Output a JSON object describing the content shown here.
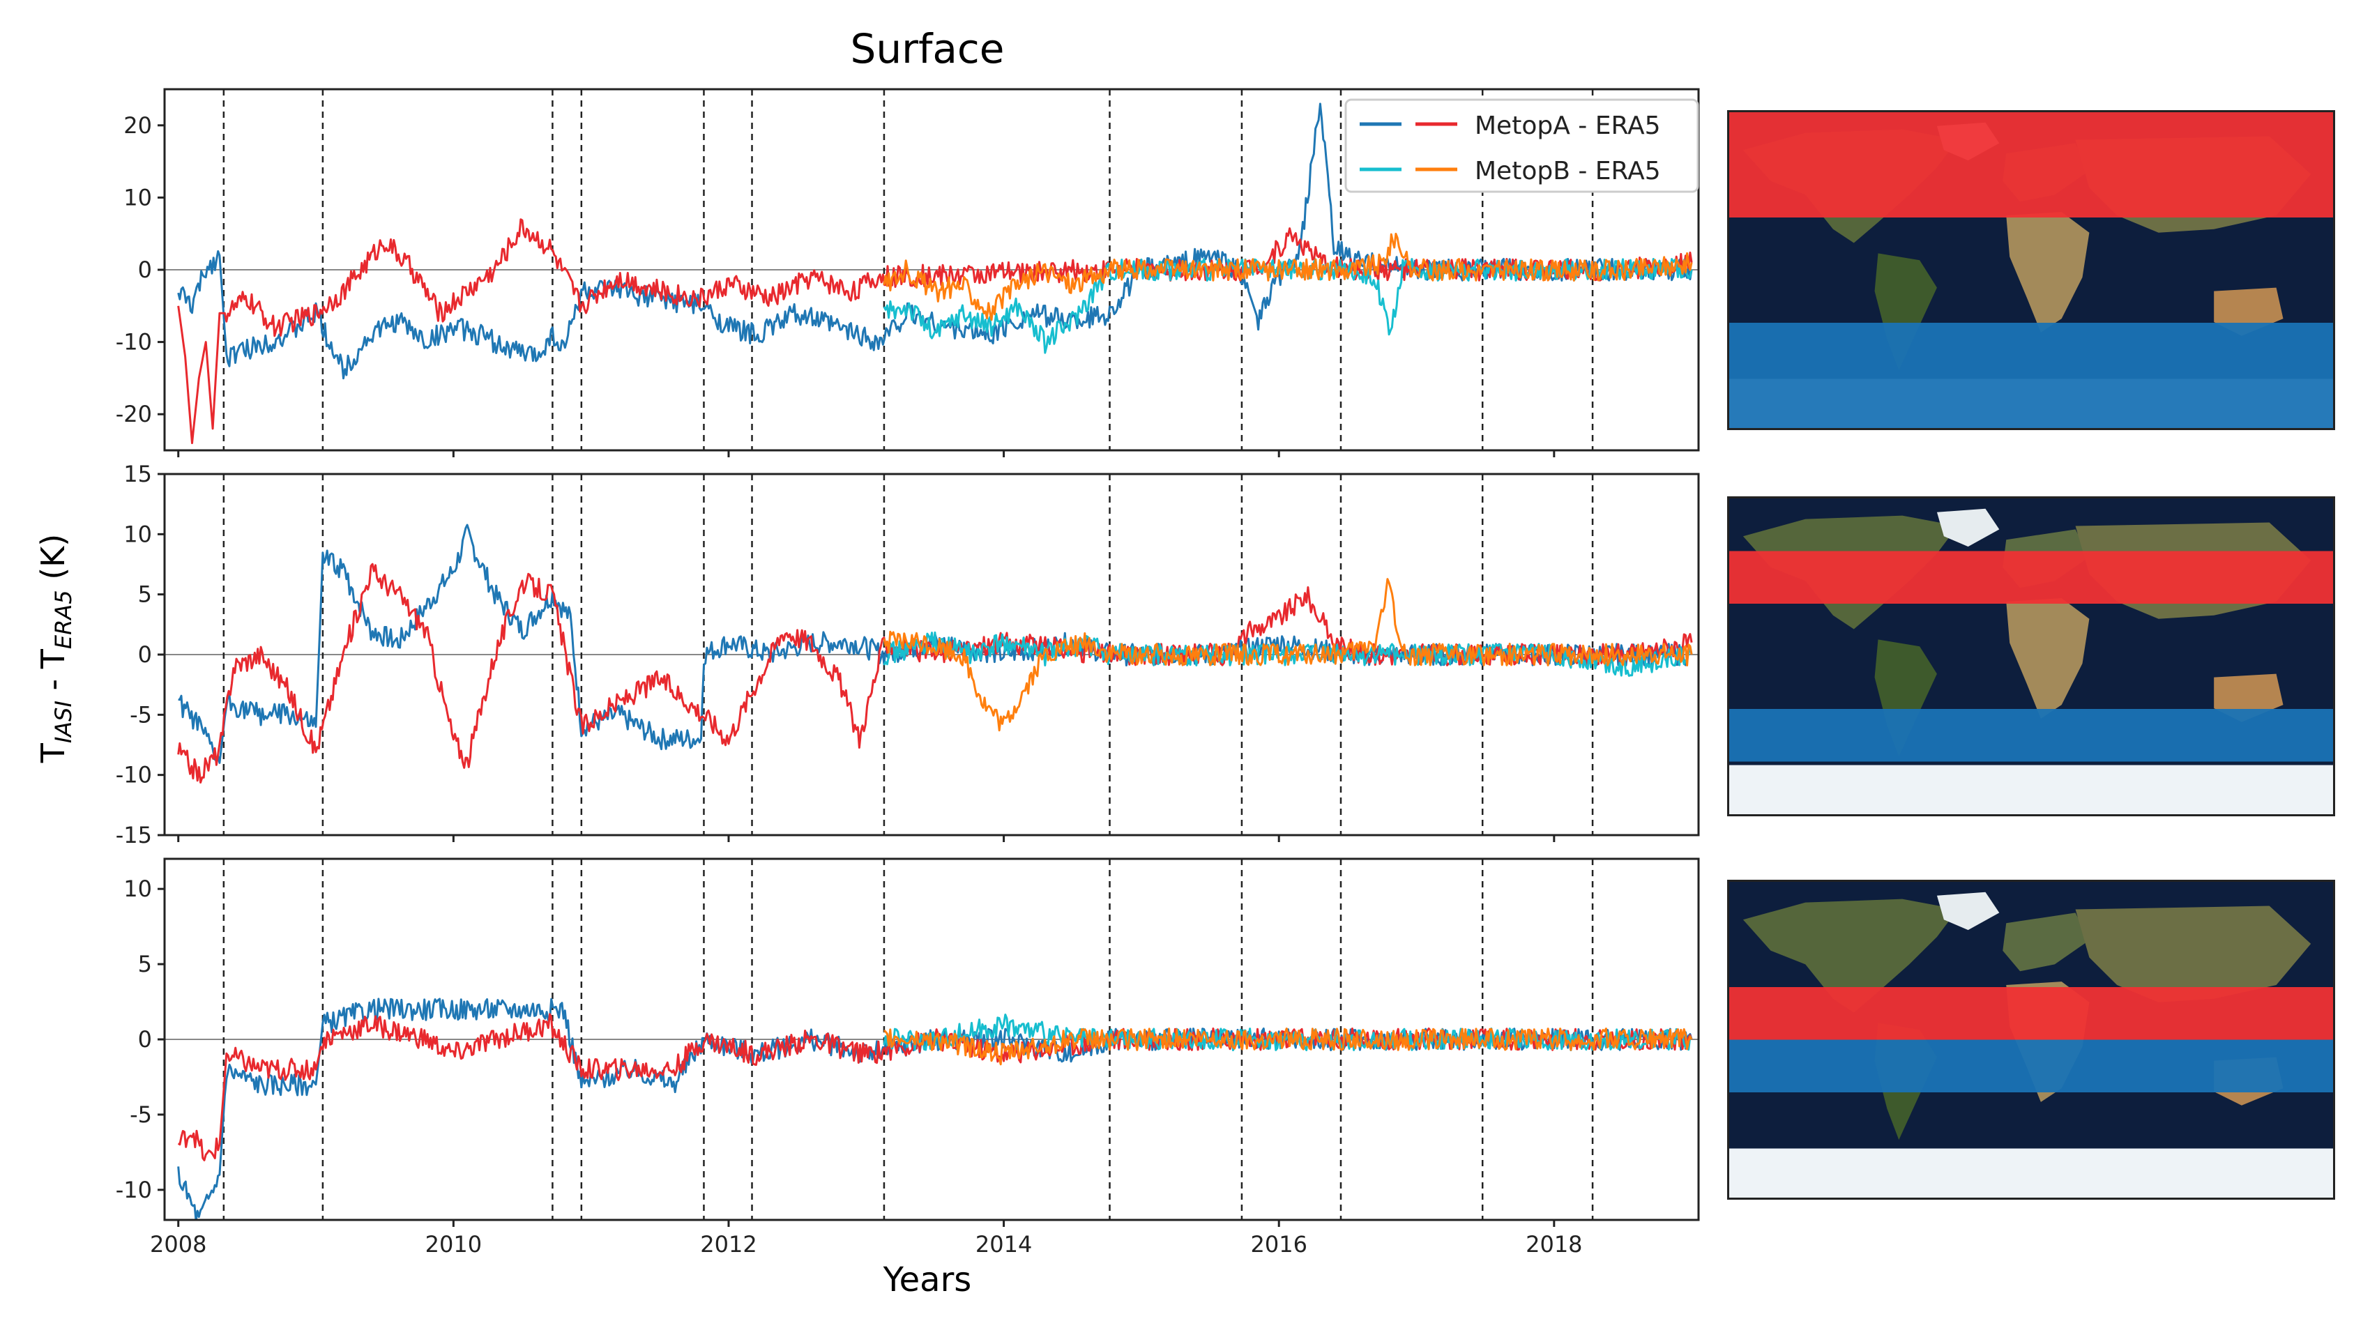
{
  "figure": {
    "title": "Surface",
    "xlabel": "Years",
    "ylabel_main": "T",
    "ylabel_sub1": "IASI",
    "ylabel_mid": " - T",
    "ylabel_sub2": "ERA5",
    "ylabel_unit": " (K)"
  },
  "legend": {
    "entries": [
      {
        "label": "MetopA - ERA5",
        "colors": [
          "#1f77b4",
          "#e8292e"
        ]
      },
      {
        "label": "MetopB - ERA5",
        "colors": [
          "#17becf",
          "#ff7f0e"
        ]
      }
    ]
  },
  "colors": {
    "metopA_south": "#1f77b4",
    "metopA_north": "#e8292e",
    "metopB_south": "#17becf",
    "metopB_north": "#ff7f0e",
    "band_red": "#f03234",
    "band_blue": "#1a73b5"
  },
  "chart_data": [
    {
      "type": "line",
      "panel": "top",
      "xlim": [
        2007.9,
        2019.05
      ],
      "ylim": [
        -25,
        25
      ],
      "xticks": [
        2008,
        2010,
        2012,
        2014,
        2016,
        2018
      ],
      "yticks": [
        -20,
        -10,
        0,
        10,
        20
      ],
      "vlines": [
        2008.33,
        2009.05,
        2010.72,
        2010.93,
        2011.82,
        2012.17,
        2013.13,
        2014.77,
        2015.73,
        2016.45,
        2017.48,
        2018.28
      ],
      "series": [
        {
          "name": "MetopA - ERA5 (blue)",
          "color": "#1f77b4",
          "x": [
            2008.0,
            2008.1,
            2008.2,
            2008.3,
            2008.35,
            2008.5,
            2008.8,
            2009.0,
            2009.1,
            2009.2,
            2009.4,
            2009.6,
            2009.8,
            2010.0,
            2010.2,
            2010.4,
            2010.6,
            2010.72,
            2010.8,
            2010.93,
            2011.2,
            2011.5,
            2011.8,
            2012.0,
            2012.2,
            2012.5,
            2012.8,
            2013.1,
            2013.3,
            2013.6,
            2013.9,
            2014.2,
            2014.5,
            2014.77,
            2015.0,
            2015.3,
            2015.5,
            2015.7,
            2015.78,
            2015.85,
            2016.0,
            2016.15,
            2016.3,
            2016.4,
            2016.6,
            2017.0,
            2017.5,
            2018.0,
            2018.5,
            2019.0
          ],
          "y": [
            -3,
            -5,
            0,
            2,
            -12,
            -11,
            -9,
            -6,
            -10,
            -14,
            -9,
            -7,
            -10,
            -8,
            -9,
            -11,
            -12,
            -9,
            -11,
            -3,
            -3,
            -4,
            -5,
            -8,
            -9,
            -6,
            -8,
            -10,
            -6,
            -8,
            -9,
            -6,
            -7,
            -6,
            0,
            1,
            2,
            0,
            -3,
            -7,
            -1,
            2,
            23,
            3,
            1,
            0,
            0,
            0,
            0,
            0
          ]
        },
        {
          "name": "MetopA - ERA5 (red)",
          "color": "#e8292e",
          "x": [
            2008.0,
            2008.05,
            2008.1,
            2008.15,
            2008.2,
            2008.25,
            2008.3,
            2008.35,
            2008.5,
            2008.7,
            2009.0,
            2009.2,
            2009.5,
            2009.7,
            2009.9,
            2010.1,
            2010.3,
            2010.5,
            2010.7,
            2010.93,
            2011.2,
            2011.5,
            2011.8,
            2012.0,
            2012.3,
            2012.6,
            2012.9,
            2013.1,
            2014.77,
            2015.0,
            2015.5,
            2015.73,
            2015.9,
            2016.1,
            2016.3,
            2016.5,
            2017.0,
            2017.5,
            2018.0,
            2018.5,
            2019.0
          ],
          "y": [
            -5,
            -12,
            -24,
            -15,
            -10,
            -22,
            -6,
            -6,
            -4,
            -8,
            -6,
            -3,
            4,
            0,
            -6,
            -3,
            0,
            6,
            3,
            -5,
            -1,
            -3,
            -4,
            -2,
            -4,
            -1,
            -3,
            -1,
            0,
            0,
            0,
            0,
            1,
            5,
            1,
            0,
            0,
            0,
            0,
            0,
            1
          ]
        },
        {
          "name": "MetopB - ERA5 (cyan)",
          "color": "#17becf",
          "x": [
            2013.13,
            2013.3,
            2013.5,
            2013.7,
            2013.9,
            2014.1,
            2014.3,
            2014.5,
            2014.77,
            2015.0,
            2015.5,
            2016.0,
            2016.5,
            2016.7,
            2016.8,
            2016.9,
            2017.2,
            2017.6,
            2018.0,
            2018.5,
            2019.0
          ],
          "y": [
            -6,
            -5,
            -9,
            -6,
            -8,
            -5,
            -10,
            -7,
            0,
            0,
            0,
            0,
            0,
            -1,
            -9,
            0,
            0,
            0,
            0,
            0,
            0
          ]
        },
        {
          "name": "MetopB - ERA5 (orange)",
          "color": "#ff7f0e",
          "x": [
            2013.13,
            2013.3,
            2013.5,
            2013.7,
            2013.9,
            2014.1,
            2014.3,
            2014.5,
            2014.77,
            2015.0,
            2015.5,
            2016.0,
            2016.5,
            2016.75,
            2016.85,
            2016.95,
            2017.5,
            2018.0,
            2018.5,
            2019.0
          ],
          "y": [
            -2,
            0,
            -3,
            -2,
            -6,
            -2,
            0,
            -2,
            0,
            0,
            0,
            0,
            0,
            1,
            5,
            0,
            0,
            0,
            0,
            1
          ]
        }
      ]
    },
    {
      "type": "line",
      "panel": "middle",
      "xlim": [
        2007.9,
        2019.05
      ],
      "ylim": [
        -15,
        15
      ],
      "xticks": [
        2008,
        2010,
        2012,
        2014,
        2016,
        2018
      ],
      "yticks": [
        -15,
        -10,
        -5,
        0,
        5,
        10,
        15
      ],
      "vlines": [
        2008.33,
        2009.05,
        2010.72,
        2010.93,
        2011.82,
        2012.17,
        2013.13,
        2014.77,
        2015.73,
        2016.45,
        2017.48,
        2018.28
      ],
      "series": [
        {
          "name": "MetopA - ERA5 (blue)",
          "color": "#1f77b4",
          "x": [
            2008.0,
            2008.15,
            2008.3,
            2008.35,
            2008.6,
            2008.8,
            2009.0,
            2009.05,
            2009.2,
            2009.4,
            2009.6,
            2009.8,
            2010.0,
            2010.1,
            2010.3,
            2010.5,
            2010.72,
            2010.85,
            2010.93,
            2011.2,
            2011.5,
            2011.8,
            2011.82,
            2012.0,
            2012.3,
            2012.6,
            2012.9,
            2013.13,
            2013.5,
            2014.0,
            2014.5,
            2014.77,
            2015.2,
            2015.6,
            2016.0,
            2016.5,
            2017.0,
            2017.5,
            2018.0,
            2018.5,
            2019.0
          ],
          "y": [
            -4,
            -6,
            -9,
            -4,
            -5,
            -5,
            -6,
            8,
            7,
            2,
            1,
            4,
            7,
            10,
            5,
            2,
            5,
            3,
            -6,
            -5,
            -7,
            -7,
            0,
            1,
            0,
            1,
            1,
            0,
            1,
            0,
            1,
            0,
            0,
            0,
            1,
            0,
            0,
            0,
            0,
            0,
            0
          ]
        },
        {
          "name": "MetopA - ERA5 (red)",
          "color": "#e8292e",
          "x": [
            2008.0,
            2008.15,
            2008.3,
            2008.4,
            2008.6,
            2008.8,
            2009.0,
            2009.2,
            2009.4,
            2009.6,
            2009.8,
            2010.0,
            2010.1,
            2010.3,
            2010.5,
            2010.72,
            2010.93,
            2011.2,
            2011.5,
            2011.82,
            2012.0,
            2012.17,
            2012.4,
            2012.6,
            2012.8,
            2012.95,
            2013.13,
            2013.5,
            2014.0,
            2014.77,
            2015.2,
            2015.6,
            2015.8,
            2016.0,
            2016.2,
            2016.4,
            2016.6,
            2017.0,
            2017.5,
            2018.0,
            2018.5,
            2019.0
          ],
          "y": [
            -8,
            -10,
            -8,
            -1,
            0,
            -3,
            -8,
            0,
            7,
            5,
            2,
            -7,
            -9,
            0,
            6,
            5,
            -6,
            -4,
            -2,
            -5,
            -7,
            -3,
            2,
            1,
            -2,
            -7,
            1,
            0,
            1,
            0,
            0,
            0,
            2,
            3,
            5,
            1,
            0,
            0,
            0,
            0,
            0,
            1
          ]
        },
        {
          "name": "MetopB - ERA5 (cyan)",
          "color": "#17becf",
          "x": [
            2013.13,
            2013.5,
            2013.8,
            2014.0,
            2014.3,
            2014.6,
            2014.77,
            2015.2,
            2015.6,
            2016.0,
            2016.5,
            2017.0,
            2017.5,
            2018.0,
            2018.5,
            2019.0
          ],
          "y": [
            0,
            1,
            0,
            1,
            0,
            1,
            0,
            0,
            0,
            0,
            0,
            0,
            0,
            0,
            -1,
            0
          ]
        },
        {
          "name": "MetopB - ERA5 (orange)",
          "color": "#ff7f0e",
          "x": [
            2013.13,
            2013.4,
            2013.7,
            2013.85,
            2014.0,
            2014.3,
            2014.6,
            2014.77,
            2015.2,
            2015.6,
            2016.0,
            2016.5,
            2016.7,
            2016.8,
            2016.9,
            2017.2,
            2017.6,
            2018.0,
            2018.5,
            2019.0
          ],
          "y": [
            1,
            1,
            0,
            -4,
            -6,
            0,
            1,
            0,
            0,
            0,
            0,
            0,
            1,
            6,
            0,
            0,
            0,
            0,
            0,
            0
          ]
        }
      ]
    },
    {
      "type": "line",
      "panel": "bottom",
      "xlim": [
        2007.9,
        2019.05
      ],
      "ylim": [
        -12,
        12
      ],
      "xticks": [
        2008,
        2010,
        2012,
        2014,
        2016,
        2018
      ],
      "yticks": [
        -10,
        -5,
        0,
        5,
        10
      ],
      "vlines": [
        2008.33,
        2009.05,
        2010.72,
        2010.93,
        2011.82,
        2012.17,
        2013.13,
        2014.77,
        2015.73,
        2016.45,
        2017.48,
        2018.28
      ],
      "series": [
        {
          "name": "MetopA - ERA5 (blue)",
          "color": "#1f77b4",
          "x": [
            2008.0,
            2008.15,
            2008.3,
            2008.35,
            2008.6,
            2008.8,
            2009.0,
            2009.05,
            2009.4,
            2009.8,
            2010.2,
            2010.6,
            2010.8,
            2010.93,
            2011.3,
            2011.6,
            2011.82,
            2012.2,
            2012.6,
            2013.0,
            2013.5,
            2014.0,
            2014.5,
            2014.77,
            2015.5,
            2016.0,
            2016.5,
            2017.0,
            2017.5,
            2018.0,
            2018.5,
            2019.0
          ],
          "y": [
            -9,
            -12,
            -9,
            -2,
            -3,
            -3,
            -3,
            1,
            2,
            2,
            2,
            2,
            2,
            -3,
            -2,
            -3,
            0,
            -1,
            0,
            -1,
            0,
            0,
            -1,
            0,
            0,
            0,
            0,
            0,
            0,
            0,
            0,
            0
          ]
        },
        {
          "name": "MetopA - ERA5 (red)",
          "color": "#e8292e",
          "x": [
            2008.0,
            2008.1,
            2008.2,
            2008.3,
            2008.35,
            2008.6,
            2008.8,
            2009.0,
            2009.05,
            2009.4,
            2009.8,
            2010.0,
            2010.3,
            2010.7,
            2010.93,
            2011.3,
            2011.6,
            2011.82,
            2012.2,
            2012.6,
            2013.0,
            2013.5,
            2014.0,
            2014.77,
            2015.5,
            2016.0,
            2016.5,
            2017.0,
            2017.5,
            2018.0,
            2018.5,
            2019.0
          ],
          "y": [
            -7,
            -6,
            -8,
            -7,
            -1,
            -2,
            -2,
            -2,
            0,
            1,
            0,
            -1,
            0,
            1,
            -2,
            -2,
            -2,
            0,
            -1,
            0,
            -1,
            0,
            -1,
            0,
            0,
            0,
            0,
            0,
            0,
            0,
            0,
            0
          ]
        },
        {
          "name": "MetopB - ERA5 (cyan)",
          "color": "#17becf",
          "x": [
            2013.13,
            2013.5,
            2014.0,
            2014.5,
            2014.77,
            2015.5,
            2016.0,
            2017.0,
            2018.0,
            2019.0
          ],
          "y": [
            0,
            0,
            1,
            0,
            0,
            0,
            0,
            0,
            0,
            0
          ]
        },
        {
          "name": "MetopB - ERA5 (orange)",
          "color": "#ff7f0e",
          "x": [
            2013.13,
            2013.5,
            2014.0,
            2014.5,
            2014.77,
            2015.5,
            2016.0,
            2017.0,
            2018.0,
            2019.0
          ],
          "y": [
            0,
            0,
            -1,
            0,
            0,
            0,
            0,
            0,
            0,
            0
          ]
        }
      ]
    }
  ],
  "maps": [
    {
      "panel": "top",
      "red_band": [
        30,
        90
      ],
      "blue_band": [
        -90,
        -30
      ]
    },
    {
      "panel": "middle",
      "red_band": [
        30,
        60
      ],
      "blue_band": [
        -60,
        -30
      ]
    },
    {
      "panel": "bottom",
      "red_band": [
        0,
        30
      ],
      "blue_band": [
        -30,
        0
      ]
    }
  ]
}
